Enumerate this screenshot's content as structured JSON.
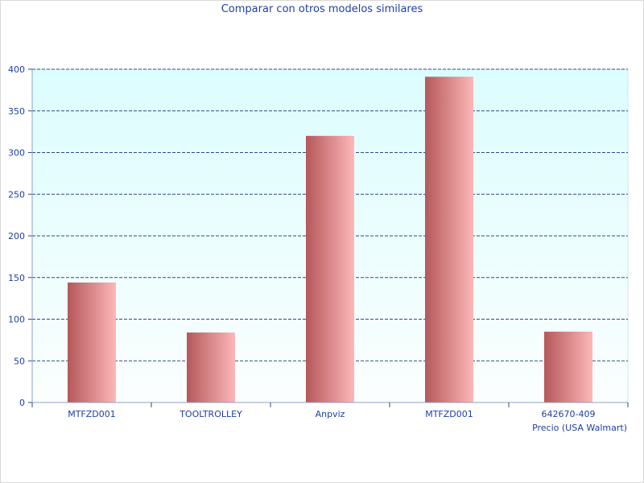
{
  "chart_data": {
    "type": "bar",
    "title": "Comparar con otros modelos similares",
    "xlabel": "Precio (USA Walmart)",
    "ylabel": "",
    "categories": [
      "MTFZD001",
      "TOOLTROLLEY",
      "Anpviz",
      "MTFZD001",
      "642670-409"
    ],
    "values": [
      144,
      84,
      320,
      391,
      85
    ],
    "ylim": [
      0,
      400
    ],
    "yticks": [
      0,
      50,
      100,
      150,
      200,
      250,
      300,
      350,
      400
    ],
    "grid": true,
    "legend": "none"
  },
  "colors": {
    "title": "#1f3fa8",
    "axis_text": "#1f3fa8",
    "grid": "#2b4a8a",
    "plot_bg_top": "#dcfdfe",
    "plot_bg_bottom": "#fbfefe",
    "bar_dark": "#b5585a",
    "bar_light": "#fdb7b8"
  }
}
